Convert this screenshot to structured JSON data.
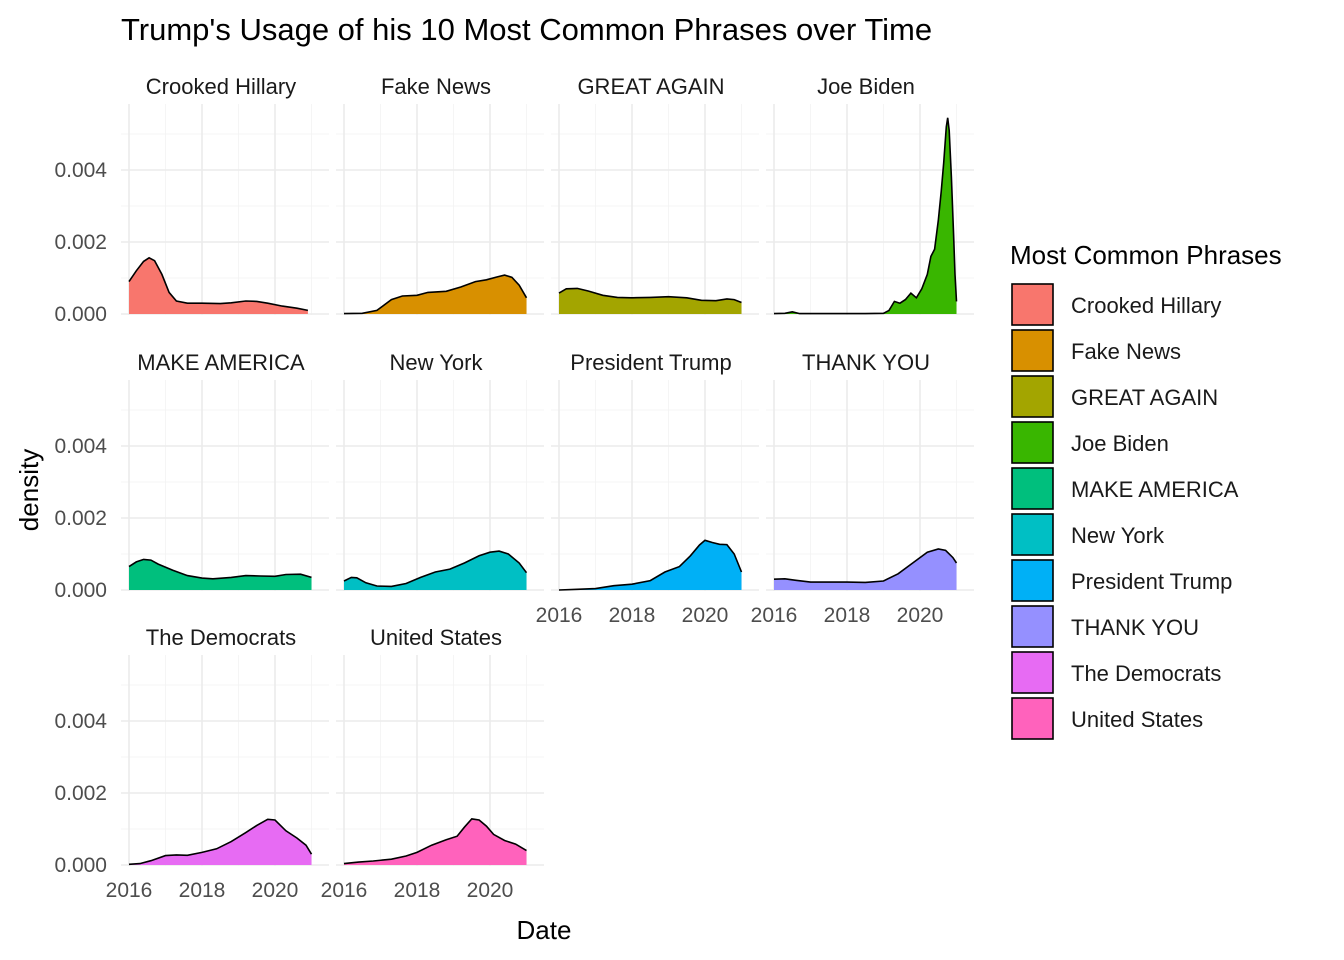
{
  "chart_data": {
    "type": "area",
    "title": "Trump's Usage of his 10 Most Common Phrases over Time",
    "xlabel": "Date",
    "ylabel": "density",
    "xlim": [
      2016,
      2021.1
    ],
    "ylim": [
      0,
      0.0056
    ],
    "x_ticks": [
      "2016",
      "2018",
      "2020"
    ],
    "y_ticks": [
      "0.000",
      "0.002",
      "0.004"
    ],
    "legend_title": "Most Common Phrases",
    "legend_position": "right",
    "grid": true,
    "facets": [
      {
        "name": "Crooked Hillary",
        "color": "#F8766D",
        "points": [
          [
            2016.0,
            0.0009
          ],
          [
            2016.2,
            0.0012
          ],
          [
            2016.4,
            0.00146
          ],
          [
            2016.55,
            0.00156
          ],
          [
            2016.7,
            0.00148
          ],
          [
            2016.9,
            0.0011
          ],
          [
            2017.1,
            0.0006
          ],
          [
            2017.3,
            0.00036
          ],
          [
            2017.6,
            0.0003
          ],
          [
            2018.0,
            0.0003
          ],
          [
            2018.5,
            0.00029
          ],
          [
            2018.8,
            0.00031
          ],
          [
            2019.2,
            0.00036
          ],
          [
            2019.5,
            0.00035
          ],
          [
            2019.8,
            0.0003
          ],
          [
            2020.2,
            0.00022
          ],
          [
            2020.6,
            0.00016
          ],
          [
            2020.9,
            0.0001
          ]
        ]
      },
      {
        "name": "Fake News",
        "color": "#D89000",
        "points": [
          [
            2016.0,
            1e-05
          ],
          [
            2016.5,
            2e-05
          ],
          [
            2016.9,
            0.0001
          ],
          [
            2017.3,
            0.0004
          ],
          [
            2017.6,
            0.0005
          ],
          [
            2018.0,
            0.00052
          ],
          [
            2018.3,
            0.0006
          ],
          [
            2018.8,
            0.00063
          ],
          [
            2019.2,
            0.00075
          ],
          [
            2019.6,
            0.0009
          ],
          [
            2019.9,
            0.00095
          ],
          [
            2020.2,
            0.00103
          ],
          [
            2020.4,
            0.00108
          ],
          [
            2020.6,
            0.00102
          ],
          [
            2020.8,
            0.0008
          ],
          [
            2021.0,
            0.00045
          ]
        ]
      },
      {
        "name": "GREAT AGAIN",
        "color": "#A3A500",
        "points": [
          [
            2016.0,
            0.00058
          ],
          [
            2016.2,
            0.0007
          ],
          [
            2016.5,
            0.00071
          ],
          [
            2016.8,
            0.00064
          ],
          [
            2017.2,
            0.00052
          ],
          [
            2017.6,
            0.00046
          ],
          [
            2018.0,
            0.00045
          ],
          [
            2018.5,
            0.00046
          ],
          [
            2019.0,
            0.00048
          ],
          [
            2019.5,
            0.00045
          ],
          [
            2019.9,
            0.00038
          ],
          [
            2020.3,
            0.00037
          ],
          [
            2020.6,
            0.00042
          ],
          [
            2020.8,
            0.0004
          ],
          [
            2021.0,
            0.00032
          ]
        ]
      },
      {
        "name": "Joe Biden",
        "color": "#39B600",
        "points": [
          [
            2016.0,
            1e-05
          ],
          [
            2016.3,
            2e-05
          ],
          [
            2016.5,
            6e-05
          ],
          [
            2016.7,
            1e-05
          ],
          [
            2017.5,
            1e-05
          ],
          [
            2018.5,
            1e-05
          ],
          [
            2019.0,
            2e-05
          ],
          [
            2019.15,
            0.0001
          ],
          [
            2019.3,
            0.00035
          ],
          [
            2019.45,
            0.0003
          ],
          [
            2019.6,
            0.0004
          ],
          [
            2019.75,
            0.00058
          ],
          [
            2019.9,
            0.00045
          ],
          [
            2020.05,
            0.0007
          ],
          [
            2020.2,
            0.0011
          ],
          [
            2020.3,
            0.0016
          ],
          [
            2020.4,
            0.0018
          ],
          [
            2020.5,
            0.0026
          ],
          [
            2020.58,
            0.0034
          ],
          [
            2020.65,
            0.0042
          ],
          [
            2020.72,
            0.0052
          ],
          [
            2020.76,
            0.00545
          ],
          [
            2020.8,
            0.0051
          ],
          [
            2020.86,
            0.0038
          ],
          [
            2020.92,
            0.0022
          ],
          [
            2020.96,
            0.0011
          ],
          [
            2021.0,
            0.00035
          ]
        ]
      },
      {
        "name": "MAKE AMERICA",
        "color": "#00BF7D",
        "points": [
          [
            2016.0,
            0.00065
          ],
          [
            2016.2,
            0.00078
          ],
          [
            2016.4,
            0.00085
          ],
          [
            2016.6,
            0.00083
          ],
          [
            2016.8,
            0.00072
          ],
          [
            2017.2,
            0.00055
          ],
          [
            2017.6,
            0.0004
          ],
          [
            2018.0,
            0.00033
          ],
          [
            2018.3,
            0.00031
          ],
          [
            2018.8,
            0.00035
          ],
          [
            2019.2,
            0.0004
          ],
          [
            2019.6,
            0.00039
          ],
          [
            2020.0,
            0.00038
          ],
          [
            2020.3,
            0.00043
          ],
          [
            2020.7,
            0.00044
          ],
          [
            2021.0,
            0.00035
          ]
        ]
      },
      {
        "name": "New York",
        "color": "#00BFC4",
        "points": [
          [
            2016.0,
            0.00025
          ],
          [
            2016.2,
            0.00035
          ],
          [
            2016.35,
            0.00034
          ],
          [
            2016.6,
            0.0002
          ],
          [
            2016.9,
            0.00011
          ],
          [
            2017.3,
            0.0001
          ],
          [
            2017.7,
            0.00018
          ],
          [
            2018.1,
            0.00035
          ],
          [
            2018.5,
            0.0005
          ],
          [
            2018.9,
            0.00058
          ],
          [
            2019.3,
            0.00075
          ],
          [
            2019.7,
            0.00095
          ],
          [
            2020.0,
            0.00105
          ],
          [
            2020.25,
            0.00108
          ],
          [
            2020.5,
            0.001
          ],
          [
            2020.8,
            0.00075
          ],
          [
            2021.0,
            0.00048
          ]
        ]
      },
      {
        "name": "President Trump",
        "color": "#00B0F6",
        "points": [
          [
            2016.0,
            0.0
          ],
          [
            2016.5,
            2e-05
          ],
          [
            2017.0,
            4e-05
          ],
          [
            2017.5,
            0.00012
          ],
          [
            2018.0,
            0.00016
          ],
          [
            2018.5,
            0.00026
          ],
          [
            2018.9,
            0.0005
          ],
          [
            2019.3,
            0.00065
          ],
          [
            2019.6,
            0.00095
          ],
          [
            2019.85,
            0.00125
          ],
          [
            2020.0,
            0.00138
          ],
          [
            2020.2,
            0.00132
          ],
          [
            2020.4,
            0.00127
          ],
          [
            2020.6,
            0.00126
          ],
          [
            2020.8,
            0.001
          ],
          [
            2021.0,
            0.0005
          ]
        ]
      },
      {
        "name": "THANK YOU",
        "color": "#9590FF",
        "points": [
          [
            2016.0,
            0.0003
          ],
          [
            2016.3,
            0.00031
          ],
          [
            2016.6,
            0.00027
          ],
          [
            2017.0,
            0.00022
          ],
          [
            2017.5,
            0.00022
          ],
          [
            2018.0,
            0.00022
          ],
          [
            2018.5,
            0.00021
          ],
          [
            2019.0,
            0.00025
          ],
          [
            2019.4,
            0.00045
          ],
          [
            2019.8,
            0.00075
          ],
          [
            2020.2,
            0.00105
          ],
          [
            2020.5,
            0.00114
          ],
          [
            2020.7,
            0.0011
          ],
          [
            2020.9,
            0.0009
          ],
          [
            2021.0,
            0.00075
          ]
        ]
      },
      {
        "name": "The Democrats",
        "color": "#E76BF3",
        "points": [
          [
            2016.0,
            2e-05
          ],
          [
            2016.3,
            4e-05
          ],
          [
            2016.6,
            0.00012
          ],
          [
            2017.0,
            0.00026
          ],
          [
            2017.3,
            0.00028
          ],
          [
            2017.6,
            0.00027
          ],
          [
            2018.0,
            0.00035
          ],
          [
            2018.4,
            0.00045
          ],
          [
            2018.8,
            0.00065
          ],
          [
            2019.2,
            0.0009
          ],
          [
            2019.5,
            0.0011
          ],
          [
            2019.8,
            0.00127
          ],
          [
            2020.0,
            0.00125
          ],
          [
            2020.3,
            0.00095
          ],
          [
            2020.6,
            0.00075
          ],
          [
            2020.85,
            0.00055
          ],
          [
            2021.0,
            0.0003
          ]
        ]
      },
      {
        "name": "United States",
        "color": "#FF62BC",
        "points": [
          [
            2016.0,
            4e-05
          ],
          [
            2016.4,
            8e-05
          ],
          [
            2016.8,
            0.00011
          ],
          [
            2017.3,
            0.00016
          ],
          [
            2017.7,
            0.00025
          ],
          [
            2018.0,
            0.00035
          ],
          [
            2018.4,
            0.00055
          ],
          [
            2018.8,
            0.0007
          ],
          [
            2019.1,
            0.0008
          ],
          [
            2019.3,
            0.00105
          ],
          [
            2019.5,
            0.00128
          ],
          [
            2019.7,
            0.00125
          ],
          [
            2019.9,
            0.00108
          ],
          [
            2020.1,
            0.00085
          ],
          [
            2020.4,
            0.00068
          ],
          [
            2020.7,
            0.00058
          ],
          [
            2021.0,
            0.0004
          ]
        ]
      }
    ]
  }
}
